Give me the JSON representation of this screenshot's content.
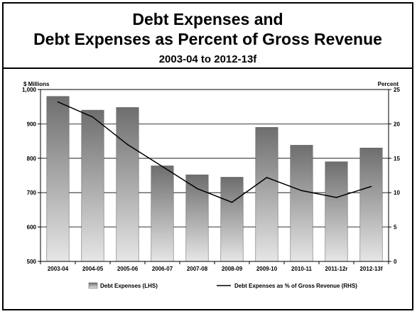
{
  "chart_data": {
    "type": "bar",
    "title": "Debt Expenses and",
    "title_line2": "Debt Expenses as Percent of Gross Revenue",
    "subtitle": "2003-04 to 2012-13f",
    "ylabel": "$ Millions",
    "y2label": "Percent",
    "categories": [
      "2003-04",
      "2004-05",
      "2005-06",
      "2006-07",
      "2007-08",
      "2008-09",
      "2009-10",
      "2010-11",
      "2011-12r",
      "2012-13f"
    ],
    "ylim": [
      500,
      1000
    ],
    "y2lim": [
      0,
      25
    ],
    "yticks": [
      "1,000",
      "900",
      "800",
      "700",
      "600",
      "500"
    ],
    "yticks_values": [
      1000,
      900,
      800,
      700,
      600,
      500
    ],
    "y2ticks": [
      "25",
      "20",
      "15",
      "10",
      "5",
      "0"
    ],
    "y2ticks_values": [
      25,
      20,
      15,
      10,
      5,
      0
    ],
    "grid": true,
    "legend_position": "bottom",
    "series": [
      {
        "name": "Debt Expenses (LHS)",
        "type": "bar",
        "axis": "left",
        "values": [
          980,
          940,
          948,
          778,
          752,
          745,
          890,
          838,
          790,
          830
        ]
      },
      {
        "name": "Debt Expenses as % of Gross Revenue (RHS)",
        "type": "line",
        "axis": "right",
        "values": [
          23.2,
          21.0,
          17.0,
          13.8,
          10.6,
          8.6,
          12.2,
          10.3,
          9.3,
          10.9
        ]
      }
    ],
    "colors": {
      "bar_top": "#6e6e6e",
      "bar_bottom": "#e6e6e6",
      "line": "#000000",
      "grid": "#000000"
    }
  }
}
